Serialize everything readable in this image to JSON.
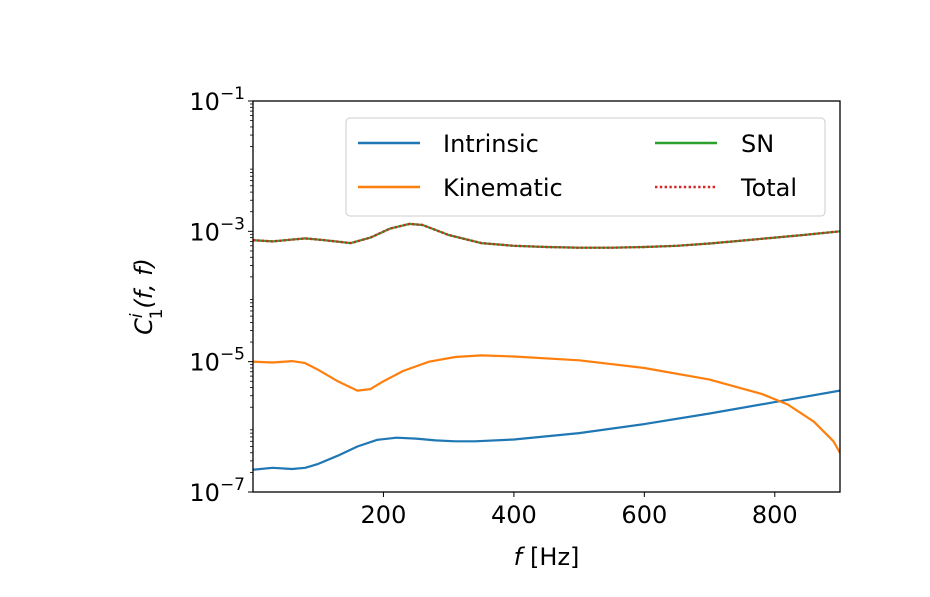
{
  "chart_data": {
    "type": "line",
    "xlabel": "[Hz]",
    "xlabel_var": "f",
    "ylabel": "C",
    "ylabel_sup": "i",
    "ylabel_sub": "1",
    "ylabel_args": "(f, f)",
    "xlim": [
      0,
      900
    ],
    "ylim_log10": [
      -7,
      -1
    ],
    "yscale": "log",
    "x_ticks": [
      200,
      400,
      600,
      800
    ],
    "y_ticks": [
      {
        "base": "10",
        "exp": "−1",
        "log": -1
      },
      {
        "base": "10",
        "exp": "−3",
        "log": -3
      },
      {
        "base": "10",
        "exp": "−5",
        "log": -5
      },
      {
        "base": "10",
        "exp": "−7",
        "log": -7
      }
    ],
    "legend_position": "top-right",
    "series": [
      {
        "name": "Intrinsic",
        "color": "#1f77b4",
        "style": "solid",
        "x": [
          0,
          30,
          60,
          80,
          100,
          130,
          160,
          190,
          220,
          250,
          280,
          310,
          340,
          400,
          500,
          600,
          700,
          800,
          900
        ],
        "y": [
          2.2e-07,
          2.35e-07,
          2.25e-07,
          2.35e-07,
          2.7e-07,
          3.6e-07,
          5e-07,
          6.3e-07,
          6.8e-07,
          6.6e-07,
          6.2e-07,
          6e-07,
          6e-07,
          6.4e-07,
          8e-07,
          1.1e-06,
          1.6e-06,
          2.4e-06,
          3.6e-06
        ]
      },
      {
        "name": "Kinematic",
        "color": "#ff7f0e",
        "style": "solid",
        "x": [
          0,
          30,
          60,
          80,
          100,
          130,
          160,
          180,
          200,
          230,
          270,
          310,
          350,
          400,
          500,
          600,
          700,
          780,
          820,
          860,
          890,
          900
        ],
        "y": [
          1e-05,
          9.7e-06,
          1.02e-05,
          9.5e-06,
          7.5e-06,
          5e-06,
          3.6e-06,
          3.8e-06,
          5e-06,
          7.2e-06,
          1e-05,
          1.18e-05,
          1.25e-05,
          1.2e-05,
          1.05e-05,
          8e-06,
          5.3e-06,
          3.2e-06,
          2.2e-06,
          1.2e-06,
          6e-07,
          4e-07
        ]
      },
      {
        "name": "SN",
        "color": "#2ca02c",
        "style": "solid",
        "x": [
          0,
          30,
          50,
          80,
          110,
          150,
          180,
          210,
          240,
          260,
          300,
          350,
          400,
          450,
          500,
          550,
          600,
          650,
          700,
          750,
          800,
          850,
          900
        ],
        "y": [
          0.00073,
          0.0007,
          0.00073,
          0.00078,
          0.00073,
          0.00066,
          0.0008,
          0.0011,
          0.0013,
          0.00125,
          0.00088,
          0.00066,
          0.0006,
          0.000575,
          0.00056,
          0.00056,
          0.000575,
          0.0006,
          0.00065,
          0.00072,
          0.0008,
          0.00089,
          0.001
        ]
      },
      {
        "name": "Total",
        "color": "#d62728",
        "style": "dotted",
        "x": [
          0,
          30,
          50,
          80,
          110,
          150,
          180,
          210,
          240,
          260,
          300,
          350,
          400,
          450,
          500,
          550,
          600,
          650,
          700,
          750,
          800,
          850,
          900
        ],
        "y": [
          0.00073,
          0.0007,
          0.00073,
          0.00078,
          0.00073,
          0.00066,
          0.0008,
          0.0011,
          0.0013,
          0.00125,
          0.00088,
          0.00066,
          0.0006,
          0.000575,
          0.00056,
          0.00056,
          0.000575,
          0.0006,
          0.00065,
          0.00072,
          0.0008,
          0.00089,
          0.001
        ]
      }
    ]
  }
}
